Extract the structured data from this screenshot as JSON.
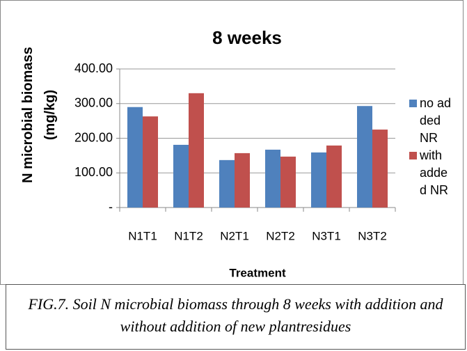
{
  "chart_data": {
    "type": "bar",
    "title": "8 weeks",
    "y_label": "N microbial biomass (mg/kg)",
    "x_label": "Treatment",
    "categories": [
      "N1T1",
      "N1T2",
      "N2T1",
      "N2T2",
      "N3T1",
      "N3T2"
    ],
    "series": [
      {
        "name": "no added NR",
        "color": "#4f81bd",
        "values": [
          290,
          181,
          137,
          167,
          159,
          293
        ]
      },
      {
        "name": "with added NR",
        "color": "#c0504d",
        "values": [
          263,
          330,
          157,
          147,
          179,
          225
        ]
      }
    ],
    "ylim": [
      0,
      400
    ],
    "yticks": [
      {
        "value": 0,
        "label": "-"
      },
      {
        "value": 100,
        "label": "100.00"
      },
      {
        "value": 200,
        "label": "200.00"
      },
      {
        "value": 300,
        "label": "300.00"
      },
      {
        "value": 400,
        "label": "400.00"
      }
    ],
    "grid": true,
    "legend": "right"
  },
  "caption": "FIG.7. Soil N microbial biomass through 8 weeks with addition and without addition of new plantresidues"
}
